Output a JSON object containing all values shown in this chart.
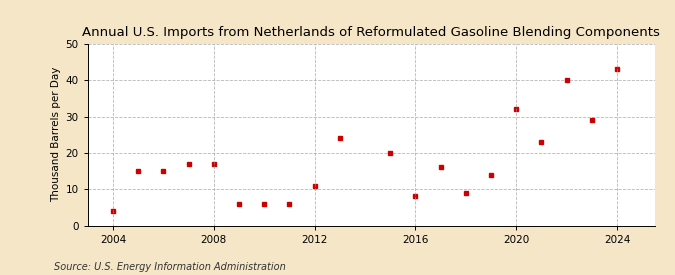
{
  "title": "Annual U.S. Imports from Netherlands of Reformulated Gasoline Blending Components",
  "ylabel": "Thousand Barrels per Day",
  "source": "Source: U.S. Energy Information Administration",
  "background_color": "#f5e6c8",
  "plot_background_color": "#ffffff",
  "marker_color": "#cc0000",
  "years": [
    2004,
    2005,
    2006,
    2007,
    2008,
    2009,
    2010,
    2011,
    2012,
    2013,
    2015,
    2016,
    2017,
    2018,
    2019,
    2020,
    2021,
    2022,
    2023,
    2024
  ],
  "values": [
    4,
    15,
    15,
    17,
    17,
    6,
    6,
    6,
    11,
    24,
    20,
    8,
    16,
    9,
    14,
    32,
    23,
    40,
    29,
    43
  ],
  "xlim": [
    2003.0,
    2025.5
  ],
  "ylim": [
    0,
    50
  ],
  "xticks": [
    2004,
    2008,
    2012,
    2016,
    2020,
    2024
  ],
  "yticks": [
    0,
    10,
    20,
    30,
    40,
    50
  ],
  "grid_color": "#999999",
  "title_fontsize": 9.5,
  "label_fontsize": 7.5,
  "tick_fontsize": 7.5,
  "source_fontsize": 7.0
}
